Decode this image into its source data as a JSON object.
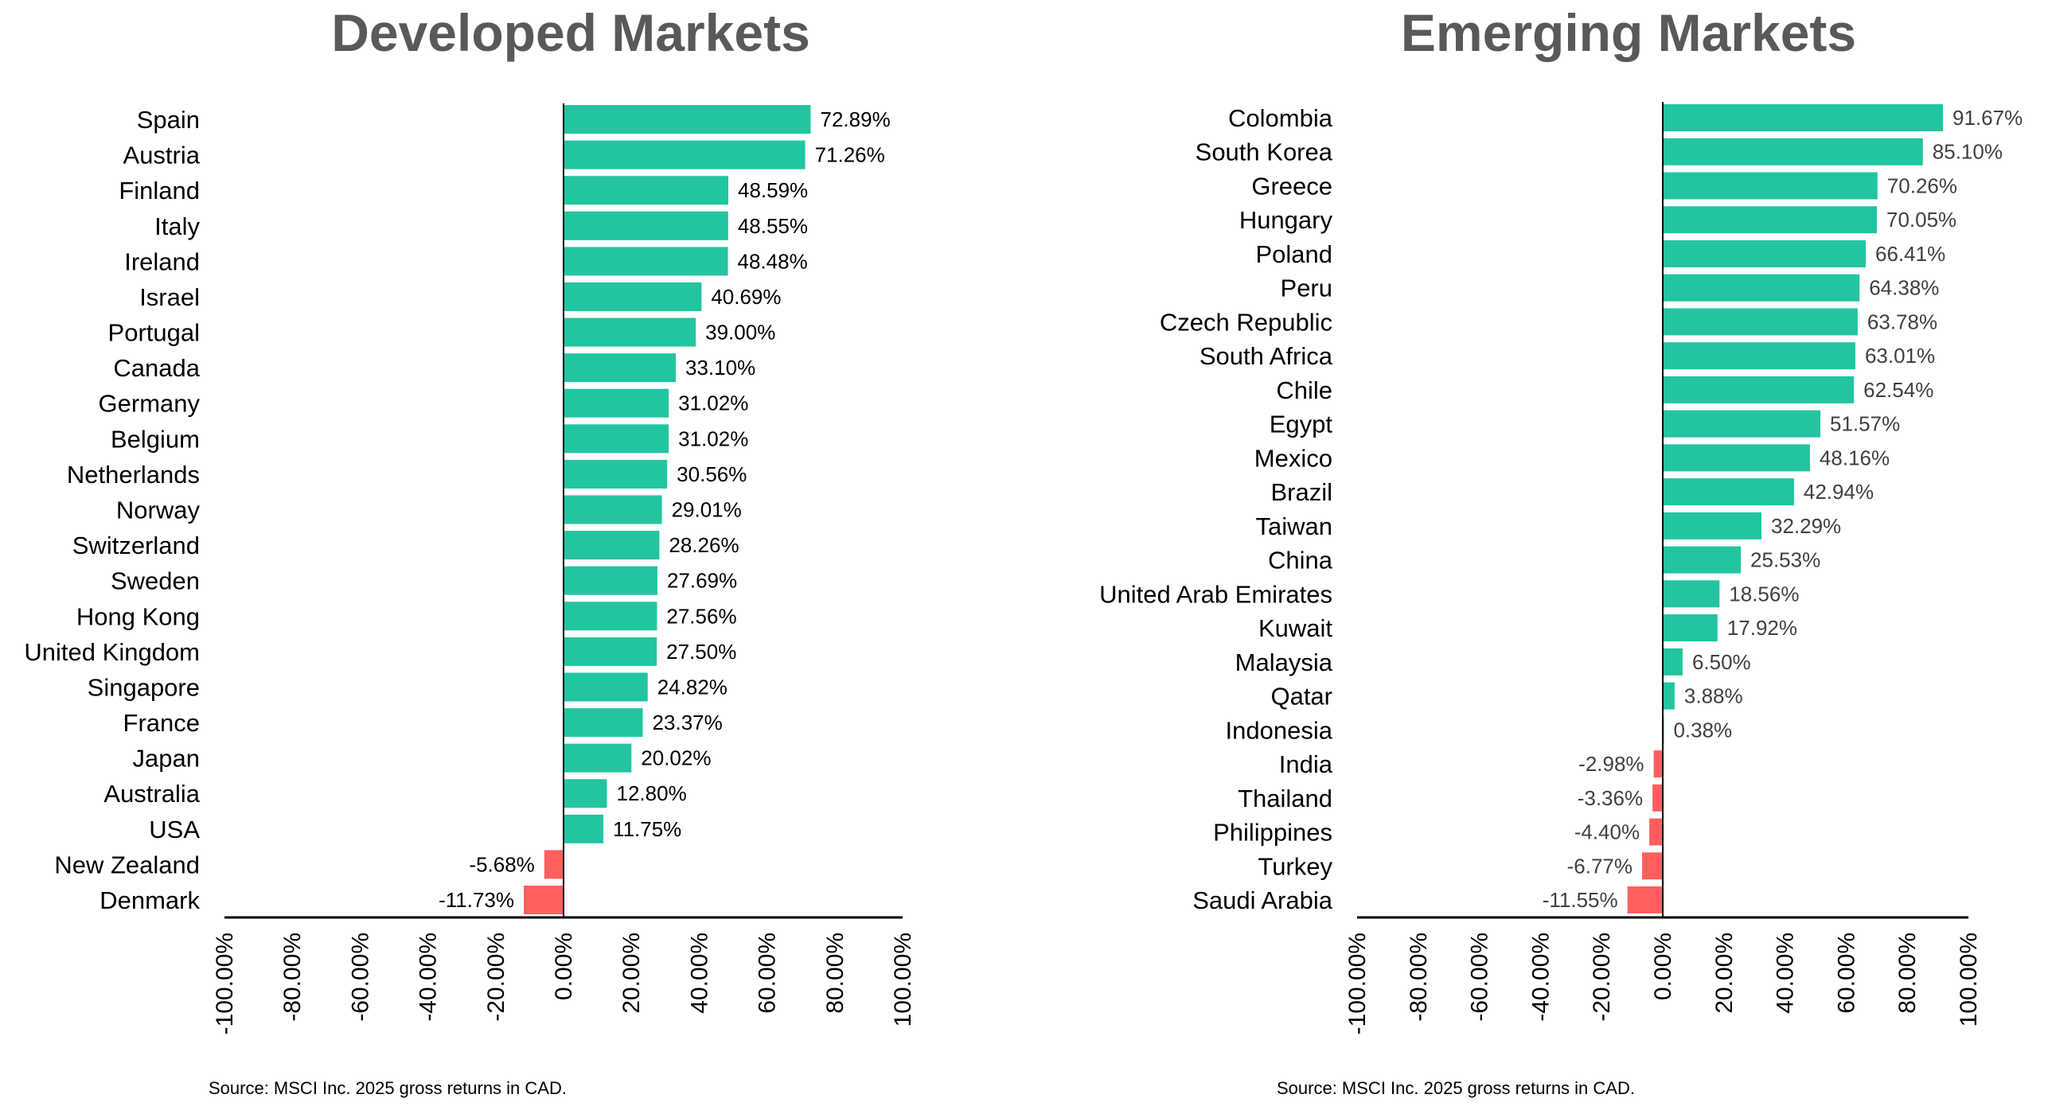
{
  "chart_data": [
    {
      "type": "bar",
      "orientation": "horizontal",
      "title": "Developed Markets",
      "xlabel": "",
      "ylabel": "",
      "xlim": [
        -100,
        100
      ],
      "x_ticks": [
        "-100.00%",
        "-80.00%",
        "-60.00%",
        "-40.00%",
        "-20.00%",
        "0.00%",
        "20.00%",
        "40.00%",
        "60.00%",
        "80.00%",
        "100.00%"
      ],
      "x_tick_values": [
        -100,
        -80,
        -60,
        -40,
        -20,
        0,
        20,
        40,
        60,
        80,
        100
      ],
      "grid": false,
      "legend": "none",
      "source": "Source: MSCI Inc. 2025 gross returns in CAD.",
      "categories": [
        "Spain",
        "Austria",
        "Finland",
        "Italy",
        "Ireland",
        "Israel",
        "Portugal",
        "Canada",
        "Germany",
        "Belgium",
        "Netherlands",
        "Norway",
        "Switzerland",
        "Sweden",
        "Hong Kong",
        "United Kingdom",
        "Singapore",
        "France",
        "Japan",
        "Australia",
        "USA",
        "New Zealand",
        "Denmark"
      ],
      "values": [
        72.89,
        71.26,
        48.59,
        48.55,
        48.48,
        40.69,
        39.0,
        33.1,
        31.02,
        31.02,
        30.56,
        29.01,
        28.26,
        27.69,
        27.56,
        27.5,
        24.82,
        23.37,
        20.02,
        12.8,
        11.75,
        -5.68,
        -11.73
      ],
      "labels": [
        "72.89%",
        "71.26%",
        "48.59%",
        "48.55%",
        "48.48%",
        "40.69%",
        "39.00%",
        "33.10%",
        "31.02%",
        "31.02%",
        "30.56%",
        "29.01%",
        "28.26%",
        "27.69%",
        "27.56%",
        "27.50%",
        "24.82%",
        "23.37%",
        "20.02%",
        "12.80%",
        "11.75%",
        "-5.68%",
        "-11.73%"
      ],
      "colors": {
        "positive": "#22C59F",
        "negative": "#FF5F5F"
      }
    },
    {
      "type": "bar",
      "orientation": "horizontal",
      "title": "Emerging Markets",
      "xlabel": "",
      "ylabel": "",
      "xlim": [
        -100,
        100
      ],
      "x_ticks": [
        "-100.00%",
        "-80.00%",
        "-60.00%",
        "-40.00%",
        "-20.00%",
        "0.00%",
        "20.00%",
        "40.00%",
        "60.00%",
        "80.00%",
        "100.00%"
      ],
      "x_tick_values": [
        -100,
        -80,
        -60,
        -40,
        -20,
        0,
        20,
        40,
        60,
        80,
        100
      ],
      "grid": false,
      "legend": "none",
      "source": "Source: MSCI Inc. 2025 gross returns in CAD.",
      "categories": [
        "Colombia",
        "South Korea",
        "Greece",
        "Hungary",
        "Poland",
        "Peru",
        "Czech Republic",
        "South Africa",
        "Chile",
        "Egypt",
        "Mexico",
        "Brazil",
        "Taiwan",
        "China",
        "United Arab Emirates",
        "Kuwait",
        "Malaysia",
        "Qatar",
        "Indonesia",
        "India",
        "Thailand",
        "Philippines",
        "Turkey",
        "Saudi Arabia"
      ],
      "values": [
        91.67,
        85.1,
        70.26,
        70.05,
        66.41,
        64.38,
        63.78,
        63.01,
        62.54,
        51.57,
        48.16,
        42.94,
        32.29,
        25.53,
        18.56,
        17.92,
        6.5,
        3.88,
        0.38,
        -2.98,
        -3.36,
        -4.4,
        -6.77,
        -11.55
      ],
      "labels": [
        "91.67%",
        "85.10%",
        "70.26%",
        "70.05%",
        "66.41%",
        "64.38%",
        "63.78%",
        "63.01%",
        "62.54%",
        "51.57%",
        "48.16%",
        "42.94%",
        "32.29%",
        "25.53%",
        "18.56%",
        "17.92%",
        "6.50%",
        "3.88%",
        "0.38%",
        "-2.98%",
        "-3.36%",
        "-4.40%",
        "-6.77%",
        "-11.55%"
      ],
      "colors": {
        "positive": "#22C59F",
        "negative": "#FF5F5F"
      }
    }
  ]
}
